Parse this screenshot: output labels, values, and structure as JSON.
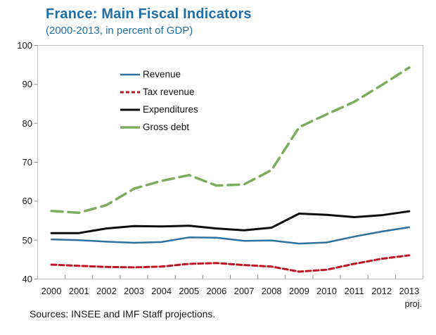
{
  "header": {
    "title": "France: Main Fiscal Indicators",
    "subtitle": "(2000-2013, in percent of GDP)"
  },
  "footer": {
    "sources": "Sources: INSEE and IMF Staff projections."
  },
  "colors": {
    "title_blue": "#1F6EA7",
    "frame_gray": "#C0C0C0",
    "tick_gray": "#8C8C8C",
    "text_black": "#1A1A1A",
    "revenue_blue": "#2E719F",
    "tax_revenue_red": "#C01527",
    "expenditures_black": "#0D0D0D",
    "gross_debt_green": "#7CAD5E"
  },
  "chart_data": {
    "type": "line",
    "title": "France: Main Fiscal Indicators",
    "subtitle": "(2000-2013, in percent of GDP)",
    "categories": [
      "2000",
      "2001",
      "2002",
      "2003",
      "2004",
      "2005",
      "2006",
      "2007",
      "2008",
      "2009",
      "2010",
      "2011",
      "2012",
      "2013"
    ],
    "x_note": "proj.",
    "ylim": [
      40,
      100
    ],
    "yticks": [
      40,
      50,
      60,
      70,
      80,
      90,
      100
    ],
    "grid": false,
    "legend_position": "inside-top-left",
    "series": [
      {
        "name": "Revenue",
        "color": "#2E719F",
        "dash": "",
        "legend_dash": "",
        "width": 2.5,
        "values": [
          50.2,
          50.0,
          49.6,
          49.3,
          49.5,
          50.7,
          50.6,
          49.8,
          49.9,
          49.1,
          49.4,
          50.9,
          52.2,
          53.3
        ]
      },
      {
        "name": "Tax revenue",
        "color": "#C01527",
        "dash": "7,4",
        "legend_dash": "5,3",
        "width": 3,
        "values": [
          43.7,
          43.4,
          43.1,
          43.0,
          43.2,
          43.9,
          44.1,
          43.6,
          43.2,
          41.9,
          42.4,
          43.9,
          45.2,
          46.1
        ]
      },
      {
        "name": "Expenditures",
        "color": "#0D0D0D",
        "dash": "",
        "legend_dash": "",
        "width": 3,
        "values": [
          51.8,
          51.8,
          53.0,
          53.6,
          53.5,
          53.7,
          53.0,
          52.5,
          53.2,
          56.8,
          56.5,
          55.9,
          56.4,
          57.4
        ]
      },
      {
        "name": "Gross debt",
        "color": "#7CAD5E",
        "dash": "16,8",
        "legend_dash": "",
        "width": 3.5,
        "values": [
          57.5,
          57.0,
          59.0,
          63.2,
          65.2,
          66.7,
          64.0,
          64.3,
          68.0,
          79.0,
          82.3,
          85.5,
          89.8,
          94.3
        ]
      }
    ],
    "source_note": "Sources: INSEE and IMF Staff projections."
  }
}
